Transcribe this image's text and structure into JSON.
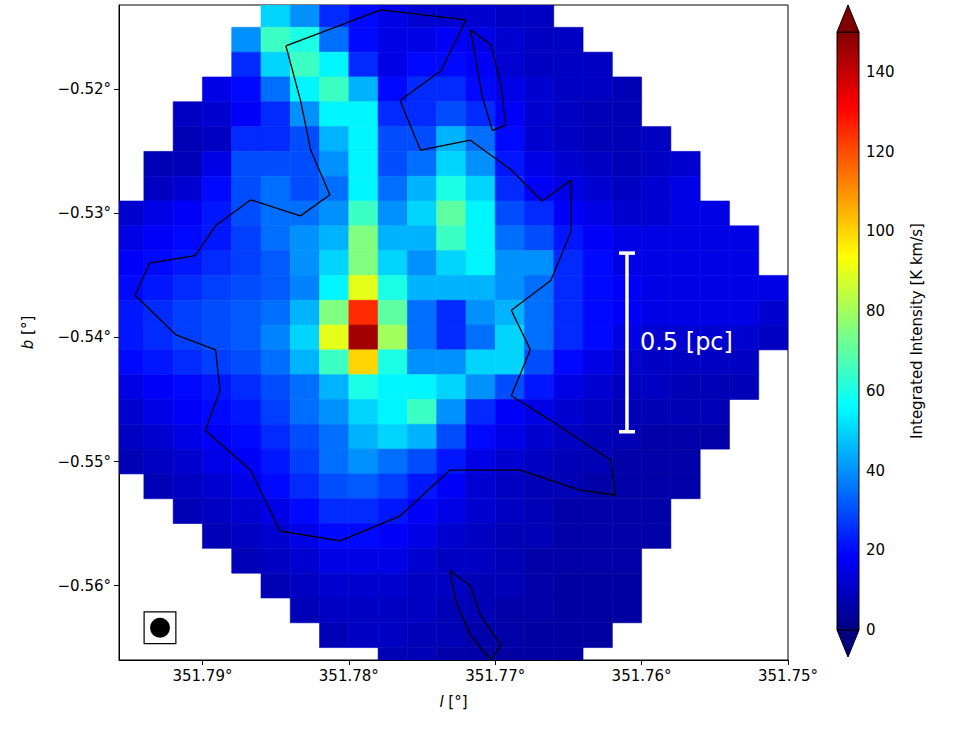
{
  "chart_data": {
    "type": "heatmap",
    "xlabel": "l [°]",
    "ylabel": "b [°]",
    "xlim": [
      351.7957,
      351.75
    ],
    "ylim": [
      -0.566,
      -0.5132
    ],
    "xticks": [
      {
        "value": 351.79,
        "label": "351.79°"
      },
      {
        "value": 351.78,
        "label": "351.78°"
      },
      {
        "value": 351.77,
        "label": "351.77°"
      },
      {
        "value": 351.76,
        "label": "351.76°"
      },
      {
        "value": 351.75,
        "label": "351.75°"
      }
    ],
    "yticks": [
      {
        "value": -0.52,
        "label": "−0.52°"
      },
      {
        "value": -0.53,
        "label": "−0.53°"
      },
      {
        "value": -0.54,
        "label": "−0.54°"
      },
      {
        "value": -0.55,
        "label": "−0.55°"
      },
      {
        "value": -0.56,
        "label": "−0.56°"
      }
    ],
    "grid": false,
    "x": [
      351.795,
      351.793,
      351.791,
      351.789,
      351.787,
      351.785,
      351.783,
      351.781,
      351.779,
      351.777,
      351.775,
      351.773,
      351.771,
      351.769,
      351.767,
      351.765,
      351.763,
      351.761,
      351.759,
      351.757,
      351.755,
      351.753,
      351.751
    ],
    "y": [
      -0.514,
      -0.516,
      -0.518,
      -0.52,
      -0.522,
      -0.524,
      -0.526,
      -0.528,
      -0.53,
      -0.532,
      -0.534,
      -0.536,
      -0.538,
      -0.54,
      -0.542,
      -0.544,
      -0.546,
      -0.548,
      -0.55,
      -0.552,
      -0.554,
      -0.556,
      -0.558,
      -0.56,
      -0.562,
      -0.564,
      -0.566
    ],
    "z": [
      [
        null,
        null,
        null,
        null,
        null,
        50,
        40,
        25,
        20,
        15,
        12,
        12,
        12,
        10,
        10,
        null,
        null,
        null,
        null,
        null,
        null,
        null,
        null
      ],
      [
        null,
        null,
        null,
        null,
        40,
        65,
        60,
        35,
        20,
        15,
        15,
        18,
        15,
        12,
        10,
        10,
        null,
        null,
        null,
        null,
        null,
        null,
        null
      ],
      [
        null,
        null,
        null,
        null,
        25,
        50,
        65,
        55,
        25,
        15,
        20,
        20,
        18,
        12,
        10,
        10,
        10,
        null,
        null,
        null,
        null,
        null,
        null
      ],
      [
        null,
        null,
        null,
        15,
        20,
        35,
        55,
        65,
        45,
        20,
        25,
        25,
        20,
        15,
        12,
        10,
        10,
        8,
        null,
        null,
        null,
        null,
        null
      ],
      [
        null,
        null,
        10,
        12,
        18,
        25,
        40,
        55,
        55,
        25,
        25,
        30,
        25,
        18,
        12,
        10,
        8,
        8,
        null,
        null,
        null,
        null,
        null
      ],
      [
        null,
        null,
        8,
        10,
        25,
        25,
        30,
        45,
        55,
        30,
        30,
        45,
        35,
        20,
        12,
        10,
        8,
        8,
        10,
        null,
        null,
        null,
        null
      ],
      [
        null,
        8,
        8,
        15,
        30,
        30,
        30,
        40,
        55,
        30,
        35,
        50,
        40,
        22,
        15,
        12,
        10,
        8,
        10,
        12,
        null,
        null,
        null
      ],
      [
        null,
        10,
        12,
        20,
        30,
        35,
        30,
        35,
        55,
        35,
        45,
        60,
        50,
        25,
        18,
        15,
        12,
        10,
        12,
        15,
        null,
        null,
        null
      ],
      [
        12,
        15,
        18,
        22,
        30,
        35,
        35,
        40,
        65,
        40,
        50,
        70,
        55,
        30,
        25,
        18,
        15,
        12,
        12,
        15,
        15,
        null,
        null
      ],
      [
        15,
        18,
        20,
        22,
        28,
        35,
        40,
        45,
        75,
        45,
        45,
        65,
        55,
        35,
        30,
        22,
        18,
        15,
        15,
        15,
        15,
        15,
        null
      ],
      [
        18,
        20,
        22,
        25,
        28,
        32,
        40,
        50,
        75,
        50,
        40,
        50,
        55,
        40,
        40,
        25,
        20,
        15,
        15,
        15,
        15,
        15,
        null
      ],
      [
        20,
        22,
        25,
        28,
        30,
        32,
        38,
        55,
        90,
        60,
        45,
        45,
        45,
        40,
        35,
        25,
        20,
        18,
        15,
        15,
        15,
        15,
        15
      ],
      [
        22,
        25,
        28,
        30,
        32,
        35,
        45,
        75,
        125,
        70,
        35,
        25,
        40,
        45,
        35,
        25,
        20,
        18,
        15,
        15,
        15,
        15,
        12
      ],
      [
        22,
        25,
        28,
        30,
        32,
        38,
        50,
        90,
        145,
        80,
        35,
        25,
        35,
        50,
        35,
        25,
        20,
        15,
        12,
        12,
        12,
        12,
        10
      ],
      [
        20,
        22,
        25,
        28,
        30,
        35,
        45,
        65,
        100,
        60,
        40,
        40,
        50,
        50,
        30,
        20,
        15,
        12,
        10,
        10,
        10,
        10,
        null
      ],
      [
        15,
        18,
        20,
        22,
        25,
        30,
        35,
        45,
        60,
        55,
        55,
        50,
        40,
        30,
        22,
        15,
        12,
        10,
        10,
        8,
        8,
        8,
        null
      ],
      [
        12,
        15,
        18,
        20,
        22,
        28,
        35,
        40,
        50,
        55,
        65,
        40,
        25,
        18,
        15,
        12,
        10,
        8,
        8,
        8,
        8,
        null,
        null
      ],
      [
        10,
        12,
        15,
        18,
        20,
        25,
        30,
        35,
        45,
        50,
        45,
        30,
        20,
        15,
        12,
        10,
        8,
        8,
        6,
        6,
        6,
        null,
        null
      ],
      [
        8,
        10,
        12,
        15,
        18,
        22,
        28,
        35,
        40,
        35,
        30,
        22,
        15,
        12,
        10,
        8,
        8,
        6,
        6,
        6,
        null,
        null,
        null
      ],
      [
        null,
        8,
        10,
        12,
        15,
        20,
        25,
        30,
        32,
        28,
        22,
        18,
        12,
        10,
        8,
        8,
        6,
        6,
        6,
        6,
        null,
        null,
        null
      ],
      [
        null,
        null,
        8,
        10,
        12,
        15,
        20,
        25,
        25,
        22,
        18,
        15,
        12,
        10,
        8,
        6,
        6,
        6,
        6,
        null,
        null,
        null,
        null
      ],
      [
        null,
        null,
        null,
        8,
        10,
        12,
        15,
        20,
        20,
        18,
        15,
        12,
        10,
        8,
        8,
        6,
        6,
        6,
        6,
        null,
        null,
        null,
        null
      ],
      [
        null,
        null,
        null,
        null,
        8,
        10,
        12,
        15,
        15,
        15,
        12,
        10,
        10,
        8,
        6,
        6,
        6,
        6,
        null,
        null,
        null,
        null,
        null
      ],
      [
        null,
        null,
        null,
        null,
        null,
        8,
        10,
        12,
        12,
        12,
        10,
        10,
        8,
        8,
        6,
        5,
        5,
        5,
        null,
        null,
        null,
        null,
        null
      ],
      [
        null,
        null,
        null,
        null,
        null,
        null,
        8,
        10,
        10,
        10,
        10,
        8,
        8,
        6,
        6,
        5,
        5,
        5,
        null,
        null,
        null,
        null,
        null
      ],
      [
        null,
        null,
        null,
        null,
        null,
        null,
        null,
        8,
        10,
        10,
        8,
        8,
        6,
        6,
        5,
        5,
        5,
        null,
        null,
        null,
        null,
        null,
        null
      ],
      [
        null,
        null,
        null,
        null,
        null,
        null,
        null,
        null,
        null,
        8,
        8,
        6,
        6,
        5,
        5,
        5,
        null,
        null,
        null,
        null,
        null,
        null,
        null
      ]
    ],
    "colorbar": {
      "label": "Integrated Intensity [K km/s]",
      "lim": [
        0,
        150
      ],
      "ticks": [
        0,
        20,
        40,
        60,
        80,
        100,
        120,
        140
      ]
    },
    "contours": [
      [
        [
          351.7843,
          -0.5165
        ],
        [
          351.7833,
          -0.5209
        ],
        [
          351.7826,
          -0.5249
        ],
        [
          351.7813,
          -0.5285
        ],
        [
          351.7833,
          -0.5302
        ],
        [
          351.7867,
          -0.5289
        ],
        [
          351.7891,
          -0.531
        ],
        [
          351.7905,
          -0.5334
        ],
        [
          351.7936,
          -0.534
        ],
        [
          351.7946,
          -0.5366
        ],
        [
          351.7918,
          -0.5398
        ],
        [
          351.7891,
          -0.541
        ],
        [
          351.7888,
          -0.5443
        ],
        [
          351.7898,
          -0.5475
        ],
        [
          351.7867,
          -0.5507
        ],
        [
          351.7847,
          -0.5556
        ],
        [
          351.7806,
          -0.5564
        ],
        [
          351.7765,
          -0.5544
        ],
        [
          351.7731,
          -0.5507
        ],
        [
          351.7683,
          -0.5507
        ],
        [
          351.7642,
          -0.5523
        ],
        [
          351.7618,
          -0.5527
        ],
        [
          351.7621,
          -0.5499
        ],
        [
          351.7662,
          -0.5467
        ],
        [
          351.7689,
          -0.5447
        ],
        [
          351.7676,
          -0.541
        ],
        [
          351.7689,
          -0.5378
        ],
        [
          351.7662,
          -0.5354
        ],
        [
          351.7648,
          -0.5314
        ],
        [
          351.7648,
          -0.5273
        ],
        [
          351.7668,
          -0.529
        ],
        [
          351.7689,
          -0.5265
        ],
        [
          351.7717,
          -0.5241
        ],
        [
          351.7751,
          -0.5249
        ],
        [
          351.7765,
          -0.5209
        ],
        [
          351.7737,
          -0.5185
        ],
        [
          351.772,
          -0.5144
        ],
        [
          351.7778,
          -0.5136
        ],
        [
          351.7843,
          -0.5165
        ]
      ],
      [
        [
          351.7731,
          -0.5588
        ],
        [
          351.7717,
          -0.56
        ],
        [
          351.771,
          -0.5624
        ],
        [
          351.7696,
          -0.5648
        ],
        [
          351.7703,
          -0.566
        ],
        [
          351.7717,
          -0.564
        ],
        [
          351.7727,
          -0.5612
        ],
        [
          351.7731,
          -0.5588
        ]
      ],
      [
        [
          351.7717,
          -0.5152
        ],
        [
          351.7703,
          -0.5164
        ],
        [
          351.7696,
          -0.5197
        ],
        [
          351.7693,
          -0.5229
        ],
        [
          351.7702,
          -0.5233
        ],
        [
          351.7709,
          -0.5205
        ],
        [
          351.7713,
          -0.5177
        ],
        [
          351.7717,
          -0.5152
        ]
      ]
    ],
    "scale_bar": {
      "label": "0.5 [pc]",
      "l": 351.761,
      "b": [
        -0.5332,
        -0.5476
      ]
    },
    "beam": {
      "l": 351.7929,
      "b": -0.5634,
      "diameter": 0.0016
    }
  }
}
